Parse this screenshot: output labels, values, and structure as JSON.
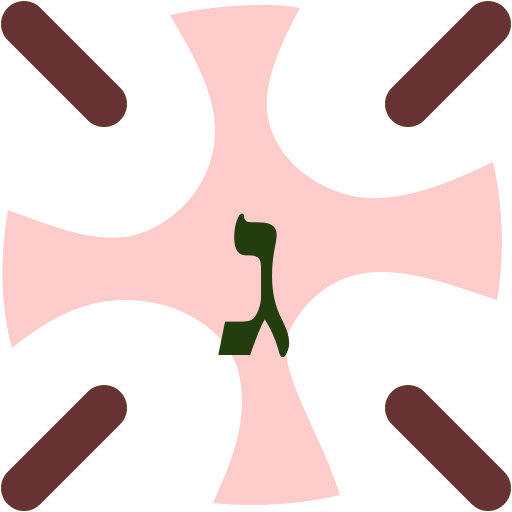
{
  "canvas": {
    "background": "#ffffff"
  },
  "shape": {
    "icon": "cross-blob-icon",
    "color": "#ffcccc"
  },
  "strokes": {
    "color": "#673333",
    "items": [
      {
        "name": "top-left-dash"
      },
      {
        "name": "top-right-dash"
      },
      {
        "name": "bottom-left-dash"
      },
      {
        "name": "bottom-right-dash"
      }
    ]
  },
  "letter": {
    "text": "ג",
    "color": "#233d0f"
  }
}
